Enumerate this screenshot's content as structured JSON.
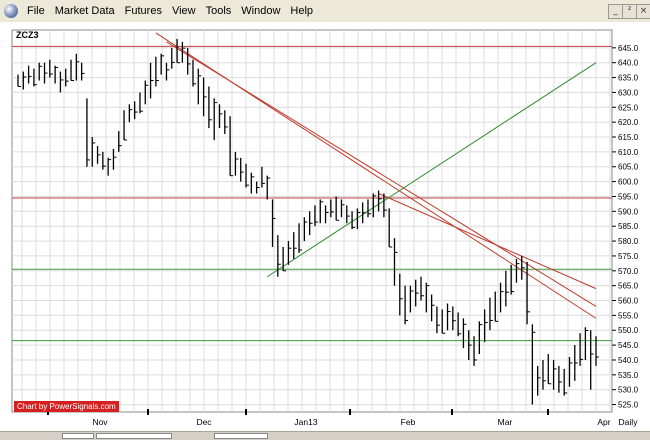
{
  "menu": {
    "items": [
      "File",
      "Market Data",
      "Futures",
      "View",
      "Tools",
      "Window",
      "Help"
    ],
    "window_controls": [
      "_",
      "²",
      "×"
    ]
  },
  "chart": {
    "symbol": "ZCZ3",
    "period": "Daily",
    "watermark": "Chart by PowerSignals.com",
    "colors": {
      "bars": "#000000",
      "red_line": "#c0392b",
      "green_line": "#2e8b2e",
      "horizontal_red": "#c04040",
      "horizontal_green": "#3a9a3a",
      "grid": "#dcdcdc"
    }
  },
  "chart_data": {
    "type": "bar",
    "series_type": "ohlc",
    "title": "ZCZ3",
    "ylim": [
      522.5,
      651
    ],
    "y_ticks": [
      "645.0",
      "640.0",
      "635.0",
      "630.0",
      "625.0",
      "620.0",
      "615.0",
      "610.0",
      "605.0",
      "600.0",
      "595.0",
      "590.0",
      "585.0",
      "580.0",
      "575.0",
      "570.0",
      "565.0",
      "560.0",
      "555.0",
      "550.0",
      "545.0",
      "540.0",
      "535.0",
      "530.0",
      "525.0"
    ],
    "x_labels": [
      "Nov",
      "Dec",
      "Jan13",
      "Feb",
      "Mar",
      "Apr"
    ],
    "bars": [
      [
        636,
        632
      ],
      [
        637,
        631
      ],
      [
        639,
        633
      ],
      [
        638,
        632
      ],
      [
        640,
        634
      ],
      [
        640,
        633
      ],
      [
        641,
        635
      ],
      [
        639,
        633
      ],
      [
        637,
        630
      ],
      [
        638,
        632
      ],
      [
        641,
        634
      ],
      [
        643,
        634
      ],
      [
        640,
        634
      ],
      [
        628,
        605
      ],
      [
        615,
        605
      ],
      [
        612,
        606
      ],
      [
        610,
        604
      ],
      [
        608,
        602
      ],
      [
        611,
        604
      ],
      [
        617,
        610
      ],
      [
        624,
        614
      ],
      [
        626,
        620
      ],
      [
        627,
        621
      ],
      [
        630,
        623
      ],
      [
        634,
        626
      ],
      [
        640,
        628
      ],
      [
        642,
        632
      ],
      [
        643,
        636
      ],
      [
        640,
        634
      ],
      [
        645,
        638
      ],
      [
        648,
        640
      ],
      [
        647,
        640
      ],
      [
        645,
        636
      ],
      [
        641,
        632
      ],
      [
        638,
        626
      ],
      [
        635,
        622
      ],
      [
        632,
        618
      ],
      [
        628,
        614
      ],
      [
        626,
        618
      ],
      [
        624,
        616
      ],
      [
        622,
        602
      ],
      [
        610,
        602
      ],
      [
        608,
        600
      ],
      [
        606,
        598
      ],
      [
        603,
        596
      ],
      [
        600,
        596
      ],
      [
        605,
        598
      ],
      [
        602,
        594
      ],
      [
        594,
        578
      ],
      [
        582,
        568
      ],
      [
        578,
        570
      ],
      [
        580,
        572
      ],
      [
        583,
        574
      ],
      [
        586,
        576
      ],
      [
        588,
        580
      ],
      [
        590,
        582
      ],
      [
        592,
        585
      ],
      [
        594,
        586
      ],
      [
        592,
        586
      ],
      [
        594,
        588
      ],
      [
        595,
        587
      ],
      [
        594,
        588
      ],
      [
        592,
        586
      ],
      [
        590,
        584
      ],
      [
        591,
        584
      ],
      [
        593,
        586
      ],
      [
        594,
        588
      ],
      [
        596,
        588
      ],
      [
        597,
        590
      ],
      [
        596,
        588
      ],
      [
        591,
        578
      ],
      [
        581,
        565
      ],
      [
        569,
        555
      ],
      [
        565,
        552
      ],
      [
        565,
        556
      ],
      [
        567,
        558
      ],
      [
        568,
        560
      ],
      [
        566,
        556
      ],
      [
        562,
        553
      ],
      [
        558,
        549
      ],
      [
        557,
        549
      ],
      [
        559,
        550
      ],
      [
        558,
        550
      ],
      [
        556,
        548
      ],
      [
        554,
        544
      ],
      [
        550,
        540
      ],
      [
        548,
        538
      ],
      [
        553,
        542
      ],
      [
        557,
        546
      ],
      [
        561,
        550
      ],
      [
        563,
        553
      ],
      [
        566,
        556
      ],
      [
        570,
        558
      ],
      [
        572,
        562
      ],
      [
        574,
        566
      ],
      [
        575,
        567
      ],
      [
        573,
        552
      ],
      [
        552,
        525
      ],
      [
        538,
        528
      ],
      [
        540,
        530
      ],
      [
        542,
        532
      ],
      [
        540,
        530
      ],
      [
        538,
        529
      ],
      [
        537,
        528
      ],
      [
        541,
        531
      ],
      [
        545,
        533
      ],
      [
        549,
        538
      ],
      [
        551,
        540
      ],
      [
        550,
        530
      ],
      [
        548,
        538
      ]
    ],
    "horizontal_lines": [
      {
        "y": 645.5,
        "color": "red"
      },
      {
        "y": 594.5,
        "color": "red"
      },
      {
        "y": 570.5,
        "color": "green"
      },
      {
        "y": 546.5,
        "color": "green"
      }
    ],
    "trend_lines": [
      {
        "from": [
          26,
          650
        ],
        "to": [
          109,
          554
        ],
        "color": "red"
      },
      {
        "from": [
          28,
          647
        ],
        "to": [
          109,
          558
        ],
        "color": "red"
      },
      {
        "from": [
          68,
          596
        ],
        "to": [
          109,
          564
        ],
        "color": "red"
      },
      {
        "from": [
          47,
          568
        ],
        "to": [
          109,
          640
        ],
        "color": "green"
      }
    ]
  }
}
